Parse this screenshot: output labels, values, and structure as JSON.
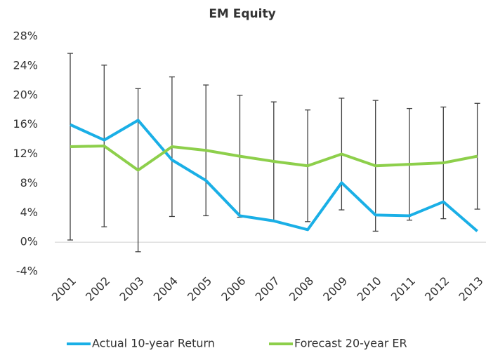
{
  "chart_data": {
    "type": "line",
    "title": "EM Equity",
    "categories": [
      "2001",
      "2002",
      "2003",
      "2004",
      "2005",
      "2006",
      "2007",
      "2008",
      "2009",
      "2010",
      "2011",
      "2012",
      "2013"
    ],
    "series": [
      {
        "name": "Actual 10-year Return",
        "color": "#1aafe6",
        "values": [
          16.0,
          13.9,
          16.6,
          11.2,
          8.4,
          3.6,
          2.9,
          1.7,
          8.1,
          3.7,
          3.6,
          5.5,
          1.5
        ]
      },
      {
        "name": "Forecast 20-year ER",
        "color": "#8dcf4b",
        "values": [
          13.0,
          13.1,
          9.8,
          13.0,
          12.5,
          11.7,
          11.0,
          10.4,
          12.0,
          10.4,
          10.6,
          10.8,
          11.7
        ],
        "errors": [
          12.7,
          11.0,
          11.1,
          9.5,
          8.9,
          8.3,
          8.1,
          7.6,
          7.6,
          8.9,
          7.6,
          7.6,
          7.2
        ]
      }
    ],
    "ylim": [
      -4,
      28
    ],
    "yticks": [
      {
        "value": -4,
        "label": "-4%"
      },
      {
        "value": 0,
        "label": "0%"
      },
      {
        "value": 4,
        "label": "4%"
      },
      {
        "value": 8,
        "label": "8%"
      },
      {
        "value": 12,
        "label": "12%"
      },
      {
        "value": 16,
        "label": "16%"
      },
      {
        "value": 20,
        "label": "20%"
      },
      {
        "value": 24,
        "label": "24%"
      },
      {
        "value": 28,
        "label": "28%"
      }
    ],
    "grid": false,
    "legend": "bottom",
    "error_color": "#404040"
  }
}
